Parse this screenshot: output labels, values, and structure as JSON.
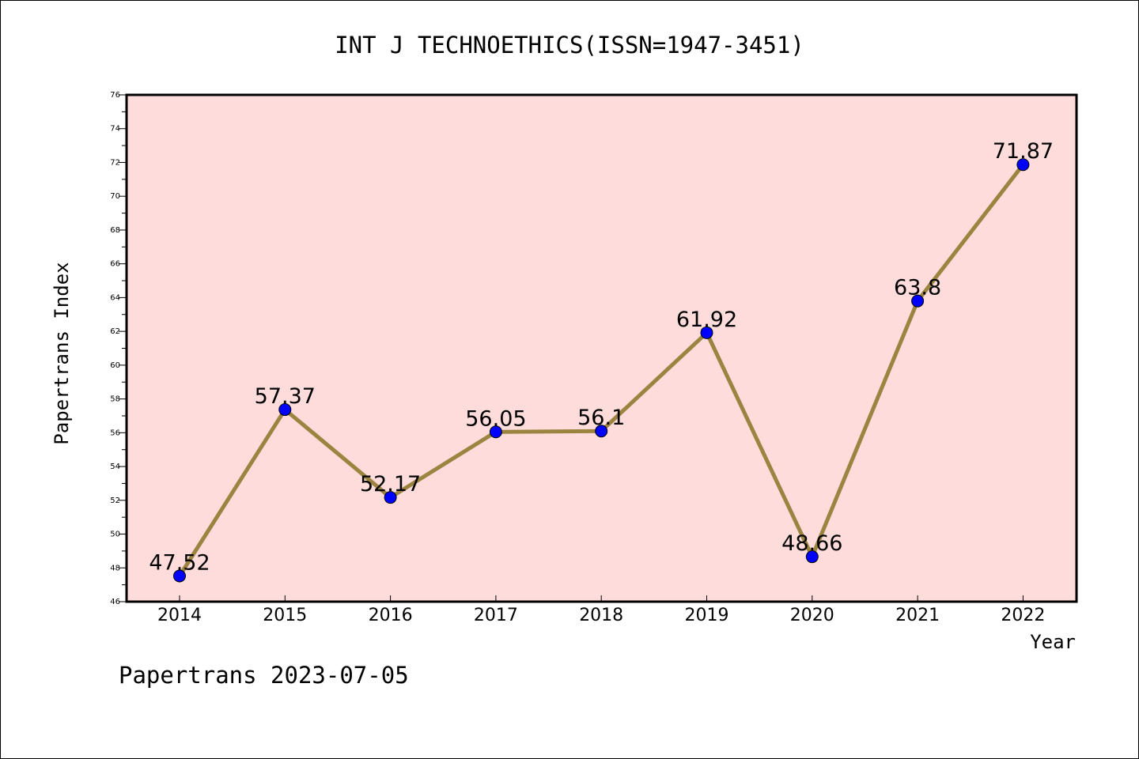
{
  "chart_data": {
    "type": "line",
    "title": "INT J TECHNOETHICS(ISSN=1947-3451)",
    "xlabel": "Year",
    "ylabel": "Papertrans Index",
    "categories": [
      "2014",
      "2015",
      "2016",
      "2017",
      "2018",
      "2019",
      "2020",
      "2021",
      "2022"
    ],
    "values": [
      47.52,
      57.37,
      52.17,
      56.05,
      56.1,
      61.92,
      48.66,
      63.8,
      71.87
    ],
    "data_labels": [
      "47.52",
      "57.37",
      "52.17",
      "56.05",
      "56.1",
      "61.92",
      "48.66",
      "63.8",
      "71.87"
    ],
    "ylim": [
      46,
      76
    ],
    "yticks": [
      46,
      48,
      50,
      52,
      54,
      56,
      58,
      60,
      62,
      64,
      66,
      68,
      70,
      72,
      74,
      76
    ],
    "grid": false,
    "footer": "Papertrans 2023-07-05",
    "colors": {
      "plot_background": "#ffdcdc",
      "line": "#9a8440",
      "marker": "#0000ff",
      "axis": "#000000"
    }
  }
}
